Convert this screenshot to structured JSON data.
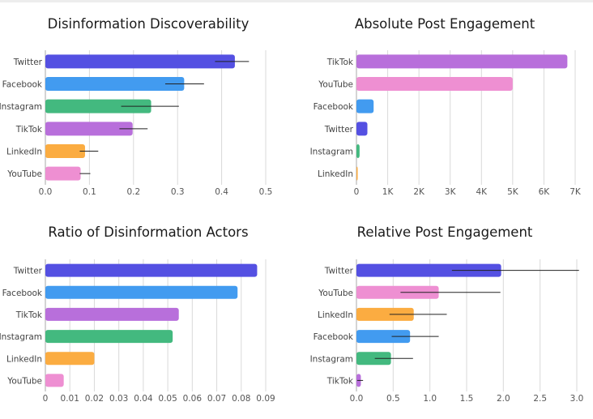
{
  "colors": {
    "Twitter": "#5450e2",
    "Facebook": "#429bf0",
    "Instagram": "#43b97f",
    "TikTok": "#b86fdb",
    "LinkedIn": "#fbac41",
    "YouTube": "#ee8fd2"
  },
  "chart_data": [
    {
      "type": "bar",
      "orientation": "horizontal",
      "title": "Disinformation Discoverability",
      "categories": [
        "Twitter",
        "Facebook",
        "Instagram",
        "TikTok",
        "LinkedIn",
        "YouTube"
      ],
      "values": [
        0.43,
        0.315,
        0.24,
        0.198,
        0.09,
        0.08
      ],
      "error": [
        [
          0.385,
          0.462
        ],
        [
          0.272,
          0.36
        ],
        [
          0.172,
          0.303
        ],
        [
          0.168,
          0.232
        ],
        [
          0.078,
          0.12
        ],
        [
          0.078,
          0.102
        ]
      ],
      "xlim": [
        0,
        0.5
      ],
      "ticks": [
        0,
        0.1,
        0.2,
        0.3,
        0.4,
        0.5
      ],
      "tick_labels": [
        "0.0",
        "0.1",
        "0.2",
        "0.3",
        "0.4",
        "0.5"
      ],
      "grid": true
    },
    {
      "type": "bar",
      "orientation": "horizontal",
      "title": "Absolute Post Engagement",
      "categories": [
        "TikTok",
        "YouTube",
        "Facebook",
        "Twitter",
        "Instagram",
        "LinkedIn"
      ],
      "values": [
        6750,
        5000,
        550,
        350,
        100,
        40
      ],
      "xlim": [
        0,
        7000
      ],
      "ticks": [
        0,
        1000,
        2000,
        3000,
        4000,
        5000,
        6000,
        7000
      ],
      "tick_labels": [
        "0",
        "1K",
        "2K",
        "3K",
        "4K",
        "5K",
        "6K",
        "7K"
      ],
      "grid": true
    },
    {
      "type": "bar",
      "orientation": "horizontal",
      "title": "Ratio of Disinformation Actors",
      "categories": [
        "Twitter",
        "Facebook",
        "TikTok",
        "Instagram",
        "LinkedIn",
        "YouTube"
      ],
      "values": [
        0.0865,
        0.0785,
        0.0545,
        0.052,
        0.02,
        0.0075
      ],
      "xlim": [
        0,
        0.09
      ],
      "ticks": [
        0,
        0.01,
        0.02,
        0.03,
        0.04,
        0.05,
        0.06,
        0.07,
        0.08,
        0.09
      ],
      "tick_labels": [
        "0",
        "0.01",
        "0.02",
        "0.03",
        "0.04",
        "0.05",
        "0.06",
        "0.07",
        "0.08",
        "0.09"
      ],
      "grid": true
    },
    {
      "type": "bar",
      "orientation": "horizontal",
      "title": "Relative Post Engagement",
      "categories": [
        "Twitter",
        "YouTube",
        "LinkedIn",
        "Facebook",
        "Instagram",
        "TikTok"
      ],
      "values": [
        1.97,
        1.12,
        0.78,
        0.73,
        0.47,
        0.06
      ],
      "error": [
        [
          1.3,
          3.03
        ],
        [
          0.6,
          1.96
        ],
        [
          0.45,
          1.23
        ],
        [
          0.48,
          1.12
        ],
        [
          0.25,
          0.77
        ],
        [
          0.01,
          0.09
        ]
      ],
      "xlim": [
        0,
        3.0
      ],
      "ticks": [
        0,
        0.5,
        1.0,
        1.5,
        2.0,
        2.5,
        3.0
      ],
      "tick_labels": [
        "0.0",
        "0.5",
        "1.0",
        "1.5",
        "2.0",
        "2.5",
        "3.0"
      ],
      "grid": true
    }
  ]
}
